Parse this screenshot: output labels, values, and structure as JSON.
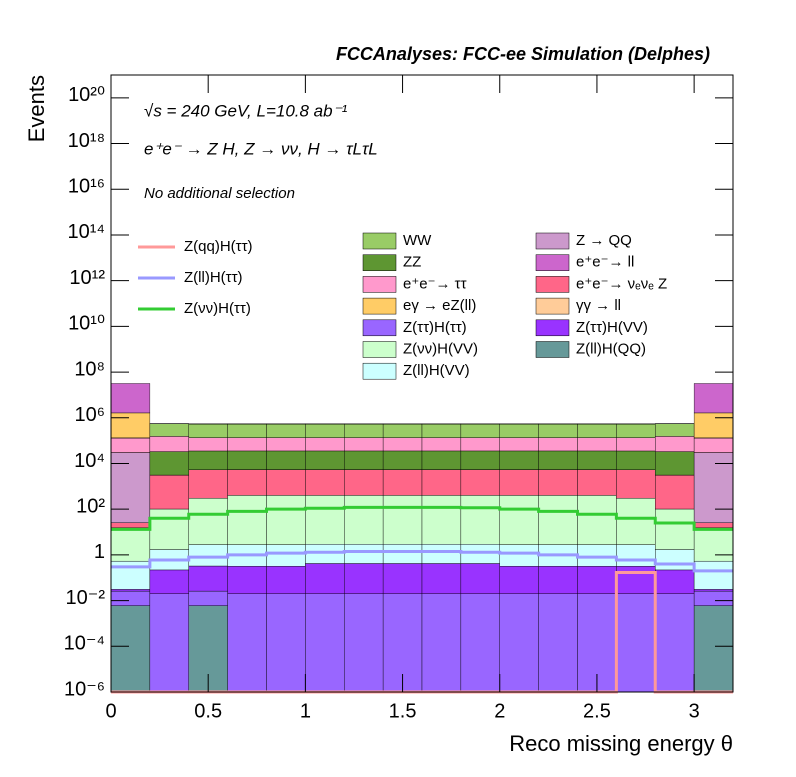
{
  "chart_data": {
    "type": "stacked_histogram",
    "title": "FCCAnalyses: FCC-ee Simulation (Delphes)",
    "annotations": [
      "√s = 240 GeV, L=10.8 ab⁻¹",
      "e⁺e⁻ → Z H, Z → νν, H → τLτL",
      "No additional selection"
    ],
    "x_label": "Reco missing energy θ",
    "y_label": "Events",
    "log_y": true,
    "bins": [
      0,
      0.2,
      0.4,
      0.6,
      0.8,
      1.0,
      1.2,
      1.4,
      1.6,
      1.8,
      2.0,
      2.2,
      2.4,
      2.6,
      2.8,
      3.0,
      3.2
    ],
    "xlim": [
      0,
      3.2
    ],
    "xticks": [
      0,
      0.5,
      1,
      1.5,
      2,
      2.5,
      3
    ],
    "ylim": [
      1e-06,
      1e+21
    ],
    "yticks": [
      {
        "value": 1e-06,
        "label": "10⁻⁶"
      },
      {
        "value": 0.0001,
        "label": "10⁻⁴"
      },
      {
        "value": 0.01,
        "label": "10⁻²"
      },
      1,
      {
        "value": 100,
        "label": "10²"
      },
      {
        "value": 10000,
        "label": "10⁴"
      },
      {
        "value": 1000000.0,
        "label": "10⁶"
      },
      {
        "value": 100000000.0,
        "label": "10⁸"
      },
      {
        "value": 10000000000.0,
        "label": "10¹⁰"
      },
      {
        "value": 1000000000000.0,
        "label": "10¹²"
      },
      {
        "value": 100000000000000.0,
        "label": "10¹⁴"
      },
      {
        "value": 1e+16,
        "label": "10¹⁶"
      },
      {
        "value": 1e+18,
        "label": "10¹⁸"
      },
      {
        "value": 1e+20,
        "label": "10²⁰"
      }
    ],
    "series": [
      {
        "name": "WW",
        "color": "#99cc66",
        "values": [
          1000,
          400000,
          400000,
          400000,
          400000,
          400000,
          400000,
          400000,
          400000,
          400000,
          400000,
          400000,
          400000,
          400000,
          400000,
          1000
        ]
      },
      {
        "name": "Z → QQ",
        "color": "#cc99cc",
        "values": [
          30000,
          10,
          10,
          10,
          10,
          10,
          10,
          10,
          10,
          10,
          10,
          10,
          10,
          10,
          10,
          30000
        ]
      },
      {
        "name": "ZZ",
        "color": "#5e9632",
        "values": [
          100,
          30000,
          30000,
          30000,
          30000,
          30000,
          30000,
          30000,
          30000,
          30000,
          30000,
          30000,
          30000,
          30000,
          30000,
          100
        ]
      },
      {
        "name": "e⁺e⁻→ ll",
        "color": "#cc66cc",
        "values": [
          30000000,
          1000,
          1000,
          1000,
          1000,
          1000,
          1000,
          1000,
          1000,
          1000,
          1000,
          1000,
          1000,
          1000,
          1000,
          30000000
        ]
      },
      {
        "name": "e⁺e⁻→ ττ",
        "color": "#ff99cc",
        "values": [
          100000,
          120000,
          100000,
          100000,
          100000,
          100000,
          100000,
          100000,
          100000,
          100000,
          100000,
          100000,
          100000,
          100000,
          120000,
          100000
        ]
      },
      {
        "name": "e⁺e⁻→ νₑνₑ Z",
        "color": "#ff6688",
        "values": [
          10,
          3000,
          5000,
          5000,
          5000,
          5000,
          5000,
          5000,
          5000,
          5000,
          5000,
          5000,
          5000,
          5000,
          3000,
          10
        ]
      },
      {
        "name": "eγ → eZ(ll)",
        "color": "#ffcc66",
        "values": [
          1500000,
          100,
          100,
          100,
          100,
          100,
          100,
          100,
          100,
          100,
          100,
          100,
          100,
          100,
          100,
          1500000
        ]
      },
      {
        "name": "γγ → ll",
        "color": "#ffcc99",
        "values": [
          1000,
          10,
          10,
          10,
          10,
          10,
          10,
          10,
          10,
          10,
          10,
          10,
          10,
          10,
          10,
          1000
        ]
      },
      {
        "name": "Z(ττ)H(ττ)",
        "color": "#9966ff",
        "values": [
          0.02,
          0.02,
          0.02,
          0.02,
          0.02,
          0.02,
          0.02,
          0.02,
          0.02,
          0.02,
          0.02,
          0.02,
          0.02,
          0.02,
          0.02,
          0.02
        ]
      },
      {
        "name": "Z(ττ)H(VV)",
        "color": "#9933ff",
        "values": [
          0.005,
          0.2,
          0.3,
          0.3,
          0.3,
          0.4,
          0.4,
          0.4,
          0.4,
          0.4,
          0.3,
          0.3,
          0.3,
          0.3,
          0.2,
          0.005
        ]
      },
      {
        "name": "Z(νν)H(VV)",
        "color": "#ccffcc",
        "values": [
          15,
          100,
          300,
          400,
          400,
          400,
          400,
          400,
          400,
          400,
          400,
          400,
          400,
          300,
          100,
          15
        ]
      },
      {
        "name": "Z(ll)H(QQ)",
        "color": "#669999",
        "values": [
          0.006,
          0,
          0.006,
          0,
          0,
          0,
          0,
          0,
          0,
          0,
          0,
          0,
          0,
          0,
          0,
          0.006
        ]
      },
      {
        "name": "Z(ll)H(VV)",
        "color": "#ccffff",
        "values": [
          0.5,
          1.5,
          2.5,
          2.5,
          2.5,
          2.5,
          2.5,
          2.5,
          2.5,
          2.5,
          2.5,
          2.5,
          2.5,
          2.5,
          1.5,
          0.5
        ]
      }
    ],
    "lines": [
      {
        "name": "Z(qq)H(ττ)",
        "color": "#ff9999",
        "values": [
          0,
          0,
          0,
          0,
          0,
          0,
          0,
          0,
          0,
          0,
          0,
          0,
          0,
          0.17,
          0,
          0
        ]
      },
      {
        "name": "Z(ll)H(ττ)",
        "color": "#9999ff",
        "values": [
          0.3,
          0.6,
          0.8,
          1,
          1.2,
          1.3,
          1.4,
          1.4,
          1.4,
          1.3,
          1.2,
          1,
          0.8,
          0.6,
          0.4,
          0.2
        ]
      },
      {
        "name": "Z(νν)H(ττ)",
        "color": "#33cc33",
        "values": [
          13,
          40,
          60,
          80,
          100,
          110,
          120,
          120,
          120,
          115,
          100,
          80,
          60,
          40,
          25,
          13
        ]
      }
    ]
  }
}
